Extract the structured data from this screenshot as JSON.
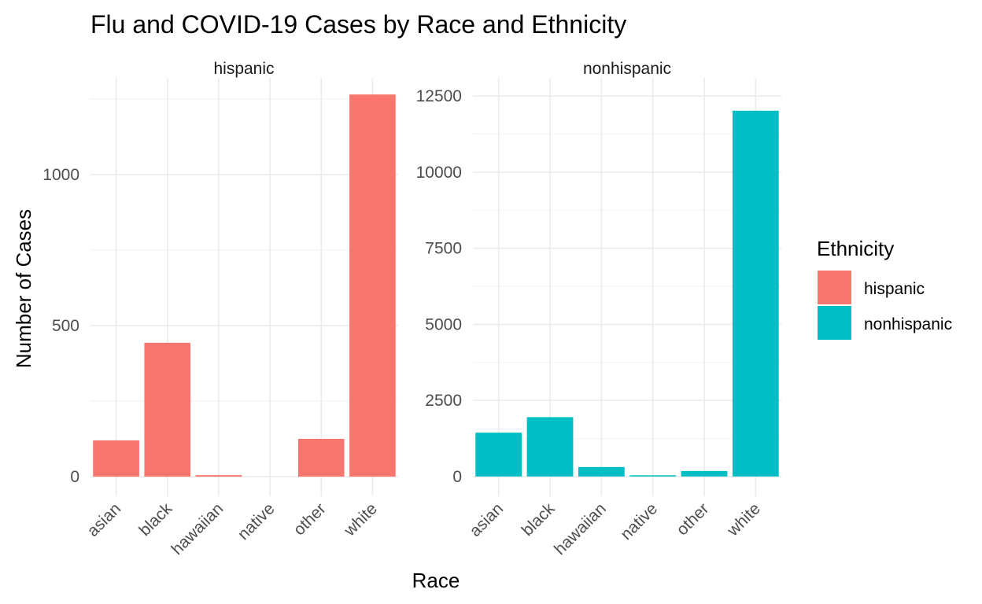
{
  "chart_data": {
    "type": "bar",
    "title": "Flu and COVID-19 Cases by Race and Ethnicity",
    "xlabel": "Race",
    "ylabel": "Number of Cases",
    "categories": [
      "asian",
      "black",
      "hawaiian",
      "native",
      "other",
      "white"
    ],
    "facet_layout": "side-by-side, independent y scales",
    "grid": true,
    "legend": {
      "title": "Ethnicity",
      "position": "right",
      "entries": [
        {
          "label": "hispanic",
          "color": "#F8766D"
        },
        {
          "label": "nonhispanic",
          "color": "#00BFC4"
        }
      ]
    },
    "panels": [
      {
        "strip": "hispanic",
        "color": "#F8766D",
        "ylim": [
          -65,
          1320
        ],
        "yticks": [
          0,
          500,
          1000
        ],
        "ytick_labels": [
          "0",
          "500",
          "1000"
        ],
        "values": [
          120,
          443,
          5,
          0,
          125,
          1265
        ]
      },
      {
        "strip": "nonhispanic",
        "color": "#00BFC4",
        "ylim": [
          -650,
          13100
        ],
        "yticks": [
          0,
          2500,
          5000,
          7500,
          10000,
          12500
        ],
        "ytick_labels": [
          "0",
          "2500",
          "5000",
          "7500",
          "10000",
          "12500"
        ],
        "values": [
          1440,
          1950,
          310,
          40,
          180,
          12020
        ]
      }
    ]
  }
}
